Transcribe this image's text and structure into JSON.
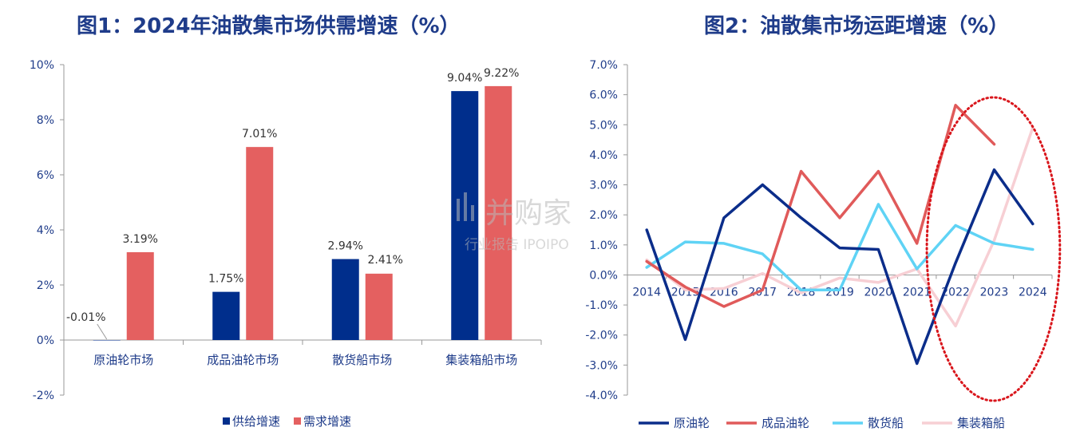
{
  "chart_data": [
    {
      "type": "bar",
      "title": "图1：2024年油散集市场供需增速（%）",
      "categories": [
        "原油轮市场",
        "成品油轮市场",
        "散货船市场",
        "集装箱船市场"
      ],
      "series": [
        {
          "name": "供给增速",
          "color": "#002e8c",
          "values": [
            -0.01,
            1.75,
            2.94,
            9.04
          ]
        },
        {
          "name": "需求增速",
          "color": "#e46060",
          "values": [
            3.19,
            7.01,
            2.41,
            9.22
          ]
        }
      ],
      "data_labels": [
        [
          "-0.01%",
          "1.75%",
          "2.94%",
          "9.04%"
        ],
        [
          "3.19%",
          "7.01%",
          "2.41%",
          "9.22%"
        ]
      ],
      "ylim": [
        -2,
        10
      ],
      "yticks": [
        -2,
        0,
        2,
        4,
        6,
        8,
        10
      ],
      "ytick_labels": [
        "-2%",
        "0%",
        "2%",
        "4%",
        "6%",
        "8%",
        "10%"
      ],
      "grid": false,
      "legend_position": "bottom"
    },
    {
      "type": "line",
      "title": "图2：油散集市场运距增速（%）",
      "x": [
        "2014",
        "2015",
        "2016",
        "2017",
        "2018",
        "2019",
        "2020",
        "2021",
        "2022",
        "2023",
        "2024"
      ],
      "series": [
        {
          "name": "原油轮",
          "color": "#0b2d8a",
          "values": [
            1.5,
            -2.15,
            1.9,
            3.0,
            1.9,
            0.9,
            0.85,
            -2.95,
            0.4,
            3.5,
            1.7
          ]
        },
        {
          "name": "成品油轮",
          "color": "#e05a5a",
          "values": [
            0.45,
            -0.4,
            -1.05,
            -0.5,
            3.45,
            1.9,
            3.45,
            1.05,
            5.65,
            4.35,
            null
          ]
        },
        {
          "name": "散货船",
          "color": "#5fd3f5",
          "values": [
            0.25,
            1.1,
            1.05,
            0.7,
            -0.5,
            -0.5,
            2.35,
            0.2,
            1.65,
            1.05,
            0.85
          ]
        },
        {
          "name": "集装箱船",
          "color": "#f7cfd4",
          "values": [
            0.5,
            -0.5,
            -0.45,
            0.05,
            -0.6,
            -0.1,
            -0.25,
            0.2,
            -1.7,
            1.15,
            4.9
          ]
        }
      ],
      "ylim": [
        -4,
        7
      ],
      "yticks": [
        -4,
        -3,
        -2,
        -1,
        0,
        1,
        2,
        3,
        4,
        5,
        6,
        7
      ],
      "ytick_labels": [
        "-4.0%",
        "-3.0%",
        "-2.0%",
        "-1.0%",
        "0.0%",
        "1.0%",
        "2.0%",
        "3.0%",
        "4.0%",
        "5.0%",
        "6.0%",
        "7.0%"
      ],
      "grid": false,
      "legend_position": "bottom",
      "highlight": {
        "shape": "dotted-ellipse",
        "color": "#d9161c",
        "covers_x": [
          "2022",
          "2023",
          "2024"
        ]
      }
    }
  ],
  "watermark": {
    "line1": "并购家",
    "line2": "行业报告 IPOIPO"
  }
}
